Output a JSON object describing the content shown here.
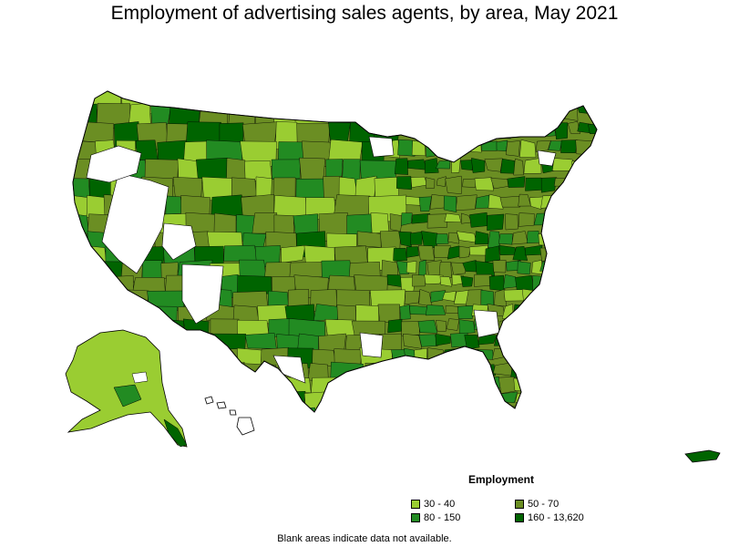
{
  "title": "Employment of advertising sales agents, by area, May 2021",
  "legend": {
    "title": "Employment",
    "items": [
      {
        "label": "30 - 40",
        "color": "#9acd32"
      },
      {
        "label": "50 - 70",
        "color": "#6b8e23"
      },
      {
        "label": "80 - 150",
        "color": "#228b22"
      },
      {
        "label": "160 - 13,620",
        "color": "#006400"
      }
    ]
  },
  "footnote": "Blank areas indicate data not available.",
  "colors": {
    "outline": "#000000",
    "no_data": "#ffffff"
  }
}
